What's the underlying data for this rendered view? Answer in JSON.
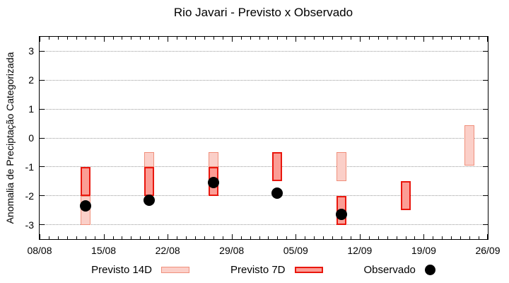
{
  "title": "Rio Javari - Previsto x Observado",
  "colors": {
    "previsto_14d_fill": "#fbcfc8",
    "previsto_14d_border": "#f0907c",
    "previsto_7d_fill": "#fb9d95",
    "previsto_7d_border": "#e9170e",
    "observado": "#000000",
    "grid": "#9a9a9a",
    "axis": "#000000",
    "background": "#ffffff"
  },
  "chart_data": {
    "type": "bar",
    "title": "Rio Javari - Previsto x Observado",
    "xlabel": "",
    "ylabel": "Anomalia de Preciptação Categorizada",
    "ylim": [
      -3.5,
      3.5
    ],
    "yticks": [
      3,
      2,
      1,
      0,
      -1,
      -2,
      -3
    ],
    "grid": "horizontal dotted at integer y values",
    "legend_position": "bottom outside",
    "x_axis": {
      "range_days": 49,
      "major_tick_interval_days": 7,
      "minor_tick_interval_days": 1,
      "tick_labels": [
        "08/08",
        "15/08",
        "22/08",
        "29/08",
        "05/09",
        "12/09",
        "19/09",
        "26/09"
      ]
    },
    "series": [
      {
        "name": "Previsto 14D",
        "type": "range-bar",
        "fill": "#fbcfc8",
        "border": "#f0907c",
        "bars": [
          {
            "date": "13/08",
            "day": 5,
            "from": -2.0,
            "to": -3.0
          },
          {
            "date": "20/08",
            "day": 12,
            "from": -0.5,
            "to": -1.0
          },
          {
            "date": "27/08",
            "day": 19,
            "from": -0.5,
            "to": -1.0
          },
          {
            "date": "10/09",
            "day": 33,
            "from": -0.5,
            "to": -1.5
          },
          {
            "date": "24/09",
            "day": 47,
            "from": 0.45,
            "to": -0.95
          }
        ]
      },
      {
        "name": "Previsto 7D",
        "type": "range-bar",
        "fill": "#fb9d95",
        "border": "#e9170e",
        "bars": [
          {
            "date": "13/08",
            "day": 5,
            "from": -1.0,
            "to": -2.0
          },
          {
            "date": "20/08",
            "day": 12,
            "from": -1.0,
            "to": -2.0
          },
          {
            "date": "27/08",
            "day": 19,
            "from": -1.0,
            "to": -2.0
          },
          {
            "date": "03/09",
            "day": 26,
            "from": -0.5,
            "to": -1.5
          },
          {
            "date": "10/09",
            "day": 33,
            "from": -2.0,
            "to": -3.0
          },
          {
            "date": "17/09",
            "day": 40,
            "from": -1.5,
            "to": -2.5
          }
        ]
      },
      {
        "name": "Observado",
        "type": "scatter",
        "color": "#000000",
        "points": [
          {
            "date": "13/08",
            "day": 5,
            "y": -2.35
          },
          {
            "date": "20/08",
            "day": 12,
            "y": -2.15
          },
          {
            "date": "27/08",
            "day": 19,
            "y": -1.55
          },
          {
            "date": "03/09",
            "day": 26,
            "y": -1.9
          },
          {
            "date": "10/09",
            "day": 33,
            "y": -2.65
          }
        ]
      }
    ]
  },
  "legend": {
    "items": [
      {
        "label": "Previsto 14D",
        "swatch": "bar-light"
      },
      {
        "label": "Previsto 7D",
        "swatch": "bar-red"
      },
      {
        "label": "Observado",
        "swatch": "dot"
      }
    ]
  }
}
